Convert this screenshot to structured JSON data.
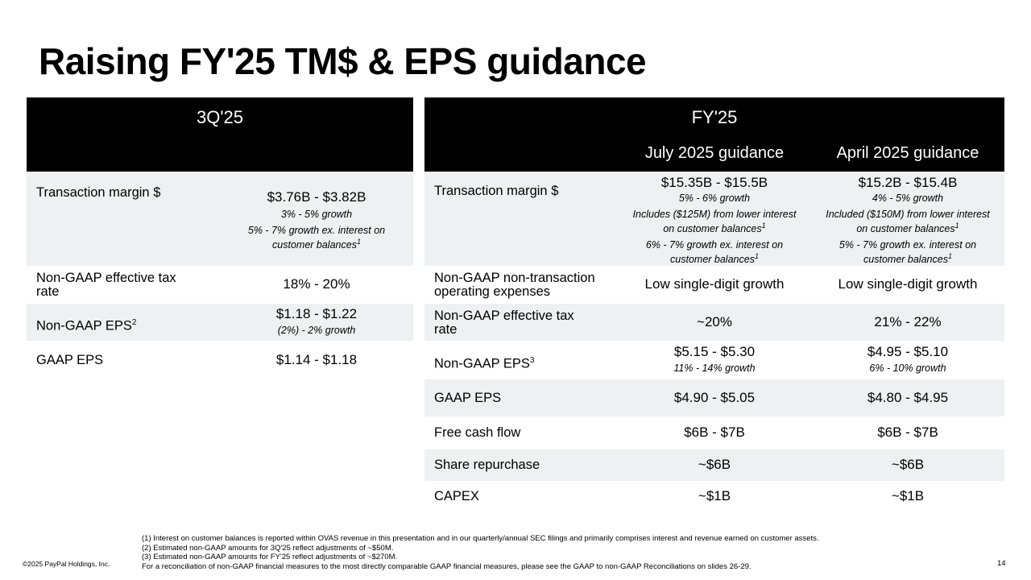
{
  "title": "Raising FY'25 TM$ & EPS guidance",
  "left": {
    "period": "3Q'25",
    "rows": {
      "tm": {
        "label": "Transaction margin $",
        "value": "$3.76B - $3.82B",
        "note1": "3% - 5% growth",
        "note2a": "5% - 7% growth ex. interest on",
        "note2b": "customer balances",
        "note2_sup": "1"
      },
      "tax": {
        "label_a": "Non-GAAP effective tax",
        "label_b": "rate",
        "value": "18% - 20%"
      },
      "eps": {
        "label": "Non-GAAP EPS",
        "label_sup": "2",
        "value": "$1.18 - $1.22",
        "note": "(2%) - 2% growth"
      },
      "gaap": {
        "label": "GAAP EPS",
        "value": "$1.14 - $1.18"
      }
    }
  },
  "right": {
    "period": "FY'25",
    "col1": "July 2025 guidance",
    "col2": "April 2025 guidance",
    "rows": {
      "tm": {
        "label": "Transaction margin $",
        "c1": {
          "value": "$15.35B - $15.5B",
          "note1": "5% - 6% growth",
          "note2a": "Includes ($125M) from lower interest",
          "note2b": "on customer balances",
          "note2_sup": "1",
          "note3a": "6% - 7% growth ex. interest on",
          "note3b": "customer balances",
          "note3_sup": "1"
        },
        "c2": {
          "value": "$15.2B - $15.4B",
          "note1": "4% - 5% growth",
          "note2a": "Included ($150M) from lower interest",
          "note2b": "on customer balances",
          "note2_sup": "1",
          "note3a": "5% - 7% growth ex. interest on",
          "note3b": "customer balances",
          "note3_sup": "1"
        }
      },
      "opex": {
        "label_a": "Non-GAAP non-transaction",
        "label_b": "operating expenses",
        "c1": "Low single-digit growth",
        "c2": "Low single-digit growth"
      },
      "tax": {
        "label_a": "Non-GAAP effective tax",
        "label_b": "rate",
        "c1": "~20%",
        "c2": "21% - 22%"
      },
      "eps": {
        "label": "Non-GAAP EPS",
        "label_sup": "3",
        "c1": "$5.15 - $5.30",
        "c1_note": "11% - 14% growth",
        "c2": "$4.95 - $5.10",
        "c2_note": "6% - 10% growth"
      },
      "gaap": {
        "label": "GAAP EPS",
        "c1": "$4.90 - $5.05",
        "c2": "$4.80 - $4.95"
      },
      "fcf": {
        "label": "Free cash flow",
        "c1": "$6B - $7B",
        "c2": "$6B - $7B"
      },
      "repurchase": {
        "label": "Share repurchase",
        "c1": "~$6B",
        "c2": "~$6B"
      },
      "capex": {
        "label": "CAPEX",
        "c1": "~$1B",
        "c2": "~$1B"
      }
    }
  },
  "footnotes": [
    "(1) Interest on customer balances is reported within OVAS revenue in this presentation and in our quarterly/annual SEC filings and primarily comprises interest and revenue earned on customer assets.",
    "(2) Estimated non-GAAP amounts for 3Q'25 reflect adjustments of ~$50M.",
    "(3) Estimated non-GAAP amounts for FY'25 reflect adjustments of ~$270M.",
    "For a reconciliation of non-GAAP financial measures to the most directly comparable GAAP financial measures, please see the GAAP to non-GAAP Reconciliations on slides 26-29."
  ],
  "copyright": "©2025 PayPal Holdings, Inc.",
  "page_number": "14"
}
